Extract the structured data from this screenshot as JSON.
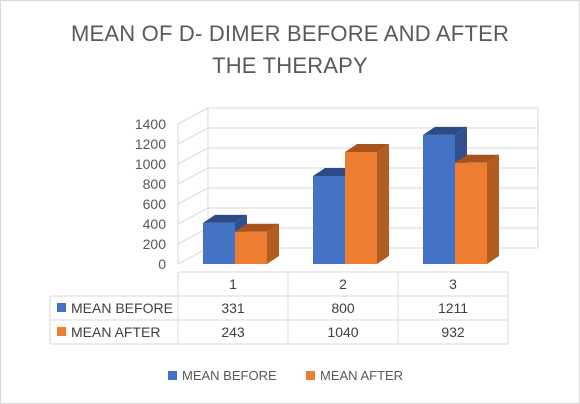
{
  "chart_data": {
    "type": "bar",
    "title_line1": "MEAN OF D- DIMER BEFORE AND AFTER",
    "title_line2": "THE THERAPY",
    "categories": [
      "1",
      "2",
      "3"
    ],
    "series": [
      {
        "name": "MEAN BEFORE",
        "values": [
          331,
          800,
          1211
        ],
        "value_labels": [
          "331",
          "800",
          "1211"
        ]
      },
      {
        "name": "MEAN AFTER",
        "values": [
          243,
          1040,
          932
        ],
        "value_labels": [
          "243",
          "1040",
          "932"
        ]
      }
    ],
    "yticks": [
      "0",
      "200",
      "400",
      "600",
      "800",
      "1000",
      "1200",
      "1400"
    ],
    "ylim": [
      0,
      1400
    ],
    "grid": true,
    "data_table": true,
    "legend_position": "bottom",
    "colors": {
      "series": [
        "#4472c4",
        "#ed7d31"
      ],
      "series_side": [
        "#2f528f",
        "#b45b1f"
      ],
      "series_top": [
        "#2a4b86",
        "#a9531c"
      ],
      "grid": "#d9d9d9",
      "text": "#595959"
    }
  }
}
